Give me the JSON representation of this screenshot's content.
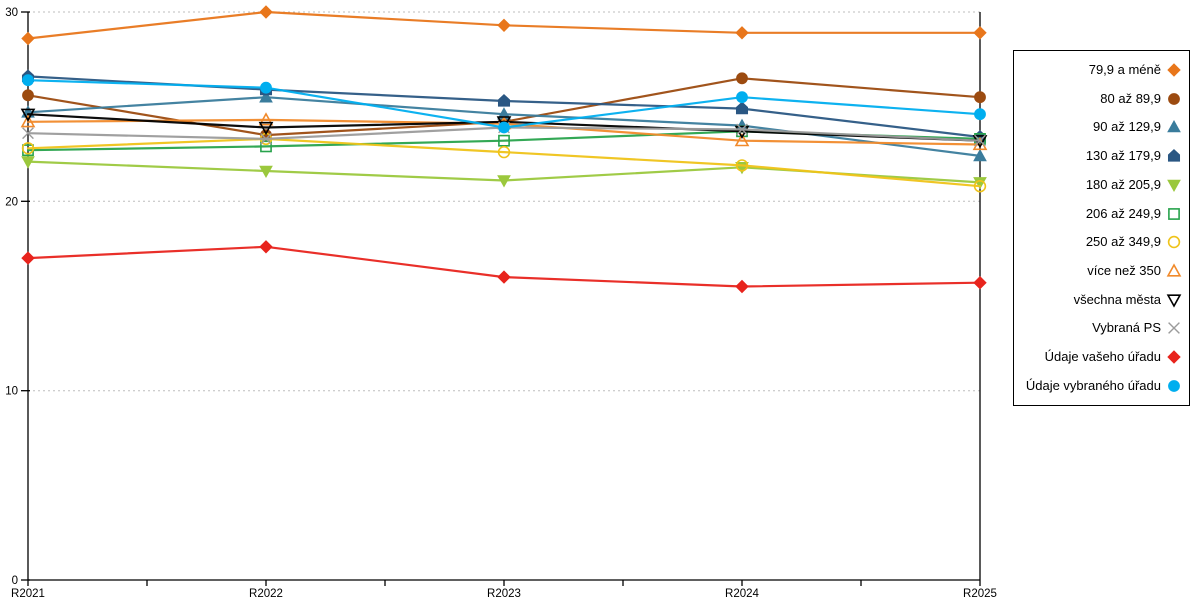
{
  "chart_data": {
    "type": "line",
    "title": "",
    "xlabel": "",
    "ylabel": "",
    "x_labels": [
      "R2021",
      "R2022",
      "R2023",
      "R2024",
      "R2025"
    ],
    "y_ticks": [
      0,
      10,
      20,
      30
    ],
    "y_tick_labels": [
      "0",
      "10",
      "20",
      "30"
    ],
    "ylim": [
      0,
      30
    ],
    "grid": "dotted-horizontal",
    "legend_position": "right-box",
    "series": [
      {
        "name": "79,9 a méně",
        "marker": "diamond",
        "style": "filled",
        "color": "#E8761B",
        "values": [
          28.6,
          30.0,
          29.3,
          28.9,
          28.9
        ]
      },
      {
        "name": "80 až 89,9",
        "marker": "circle",
        "style": "filled",
        "color": "#9C4B10",
        "values": [
          25.6,
          23.5,
          24.2,
          26.5,
          25.5
        ]
      },
      {
        "name": "90 až 129,9",
        "marker": "triangle-up",
        "style": "filled",
        "color": "#3A7C9C",
        "values": [
          24.7,
          25.5,
          24.6,
          24.0,
          22.4
        ]
      },
      {
        "name": "130 až 179,9",
        "marker": "pentagon",
        "style": "filled",
        "color": "#2A5783",
        "values": [
          26.6,
          25.9,
          25.3,
          24.9,
          23.4
        ]
      },
      {
        "name": "180 až 205,9",
        "marker": "triangle-down",
        "style": "filled",
        "color": "#9BC83D",
        "values": [
          22.1,
          21.6,
          21.1,
          21.8,
          21.0
        ]
      },
      {
        "name": "206 až 249,9",
        "marker": "square",
        "style": "open",
        "color": "#28A34C",
        "values": [
          22.7,
          22.9,
          23.2,
          23.7,
          23.3
        ]
      },
      {
        "name": "250 až 349,9",
        "marker": "circle",
        "style": "open",
        "color": "#EFC319",
        "values": [
          22.8,
          23.3,
          22.6,
          21.9,
          20.8
        ]
      },
      {
        "name": "více než 350",
        "marker": "triangle-up",
        "style": "open",
        "color": "#F18A2B",
        "values": [
          24.2,
          24.3,
          24.1,
          23.2,
          23.0
        ]
      },
      {
        "name": "všechna města",
        "marker": "triangle-down",
        "style": "open",
        "color": "#000000",
        "values": [
          24.6,
          23.9,
          24.2,
          23.7,
          23.2
        ]
      },
      {
        "name": "Vybraná PS",
        "marker": "x",
        "style": "open",
        "color": "#9B9B9B",
        "values": [
          23.6,
          23.3,
          23.9,
          23.8,
          23.2
        ]
      },
      {
        "name": "Údaje vašeho úřadu",
        "marker": "diamond",
        "style": "filled",
        "color": "#E8241D",
        "values": [
          17.0,
          17.6,
          16.0,
          15.5,
          15.7
        ]
      },
      {
        "name": "Údaje vybraného úřadu",
        "marker": "circle",
        "style": "filled",
        "color": "#00AEEF",
        "values": [
          26.4,
          26.0,
          23.9,
          25.5,
          24.6
        ]
      }
    ]
  },
  "axis": {
    "color": "#000000",
    "grid_color": "#BDBDBD",
    "label_color": "#000000"
  }
}
